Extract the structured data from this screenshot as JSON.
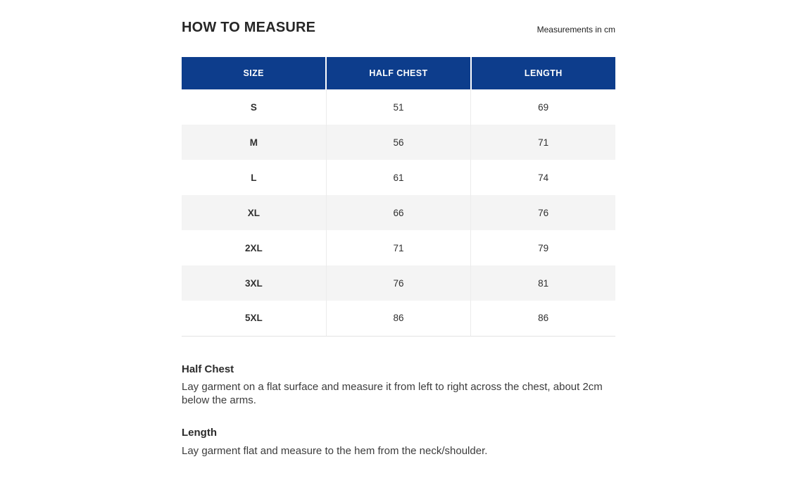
{
  "page": {
    "title": "HOW TO MEASURE",
    "unit_note": "Measurements in cm"
  },
  "table": {
    "columns": [
      "SIZE",
      "HALF CHEST",
      "LENGTH"
    ],
    "rows": [
      {
        "size": "S",
        "half_chest": "51",
        "length": "69"
      },
      {
        "size": "M",
        "half_chest": "56",
        "length": "71"
      },
      {
        "size": "L",
        "half_chest": "61",
        "length": "74"
      },
      {
        "size": "XL",
        "half_chest": "66",
        "length": "76"
      },
      {
        "size": "2XL",
        "half_chest": "71",
        "length": "79"
      },
      {
        "size": "3XL",
        "half_chest": "76",
        "length": "81"
      },
      {
        "size": "5XL",
        "half_chest": "86",
        "length": "86"
      }
    ]
  },
  "sections": [
    {
      "heading": "Half Chest",
      "body": "Lay garment on a flat surface and measure it from left to right across the chest, about 2cm below the arms."
    },
    {
      "heading": "Length",
      "body": "Lay garment flat and measure to the hem from the neck/shoulder."
    }
  ],
  "colors": {
    "header_bg": "#0d3d8c",
    "header_text": "#ffffff",
    "row_bg": "#ffffff",
    "row_alt_bg": "#f4f4f4",
    "text": "#333333",
    "divider": "#ececec"
  },
  "chart_data": {
    "type": "table",
    "title": "HOW TO MEASURE",
    "unit": "cm",
    "columns": [
      "SIZE",
      "HALF CHEST",
      "LENGTH"
    ],
    "rows": [
      [
        "S",
        51,
        69
      ],
      [
        "M",
        56,
        71
      ],
      [
        "L",
        61,
        74
      ],
      [
        "XL",
        66,
        76
      ],
      [
        "2XL",
        71,
        79
      ],
      [
        "3XL",
        76,
        81
      ],
      [
        "5XL",
        86,
        86
      ]
    ],
    "notes": [
      "Half Chest: Lay garment on a flat surface and measure it from left to right across the chest, about 2cm below the arms.",
      "Length: Lay garment flat and measure to the hem from the neck/shoulder."
    ]
  }
}
